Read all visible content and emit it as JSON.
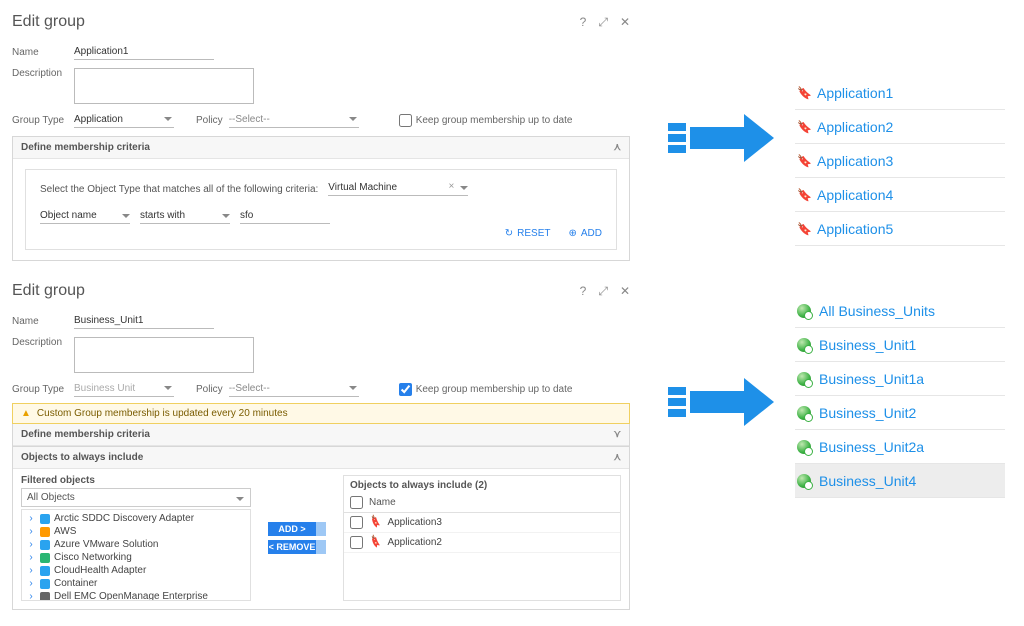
{
  "dialog1": {
    "title": "Edit group",
    "name_label": "Name",
    "name_value": "Application1",
    "desc_label": "Description",
    "grouptype_label": "Group Type",
    "grouptype_value": "Application",
    "policy_label": "Policy",
    "policy_value": "--Select--",
    "keep_checked": false,
    "keep_label": "Keep group membership up to date",
    "criteria": {
      "panel_title": "Define membership criteria",
      "sentence": "Select the Object Type that matches all of the following criteria:",
      "object_type": "Virtual Machine",
      "prop": "Object name",
      "op": "starts with",
      "value": "sfo",
      "reset_label": "RESET",
      "add_label": "ADD"
    }
  },
  "dialog2": {
    "title": "Edit group",
    "name_label": "Name",
    "name_value": "Business_Unit1",
    "desc_label": "Description",
    "grouptype_label": "Group Type",
    "grouptype_value": "Business Unit",
    "policy_label": "Policy",
    "policy_value": "--Select--",
    "keep_checked": true,
    "keep_label": "Keep group membership up to date",
    "warning": "Custom Group membership is updated every 20 minutes",
    "criteria_title": "Define membership criteria",
    "oti": {
      "panel_title": "Objects to always include",
      "filtered_label": "Filtered objects",
      "all_objects": "All Objects",
      "adapters": [
        {
          "label": "Arctic SDDC Discovery Adapter",
          "color": "#2aa3ef"
        },
        {
          "label": "AWS",
          "color": "#ff9900"
        },
        {
          "label": "Azure VMware Solution",
          "color": "#2aa3ef"
        },
        {
          "label": "Cisco Networking",
          "color": "#2bb673"
        },
        {
          "label": "CloudHealth Adapter",
          "color": "#2aa3ef"
        },
        {
          "label": "Container",
          "color": "#2aa3ef"
        },
        {
          "label": "Dell EMC OpenManage Enterprise",
          "color": "#666666"
        }
      ],
      "add_label": "ADD >",
      "remove_label": "< REMOVE",
      "right_title": "Objects to always include (2)",
      "col_name": "Name",
      "rows": [
        "Application3",
        "Application2"
      ]
    }
  },
  "lists": {
    "apps": [
      "Application1",
      "Application2",
      "Application3",
      "Application4",
      "Application5"
    ],
    "bus": [
      {
        "label": "All Business_Units",
        "sel": false
      },
      {
        "label": "Business_Unit1",
        "sel": false
      },
      {
        "label": "Business_Unit1a",
        "sel": false
      },
      {
        "label": "Business_Unit2",
        "sel": false
      },
      {
        "label": "Business_Unit2a",
        "sel": false
      },
      {
        "label": "Business_Unit4",
        "sel": true
      }
    ]
  },
  "colors": {
    "link": "#1e90e8",
    "arrow": "#1e90e8",
    "warn_bg": "#fff9e6",
    "warn_border": "#f0d060"
  }
}
